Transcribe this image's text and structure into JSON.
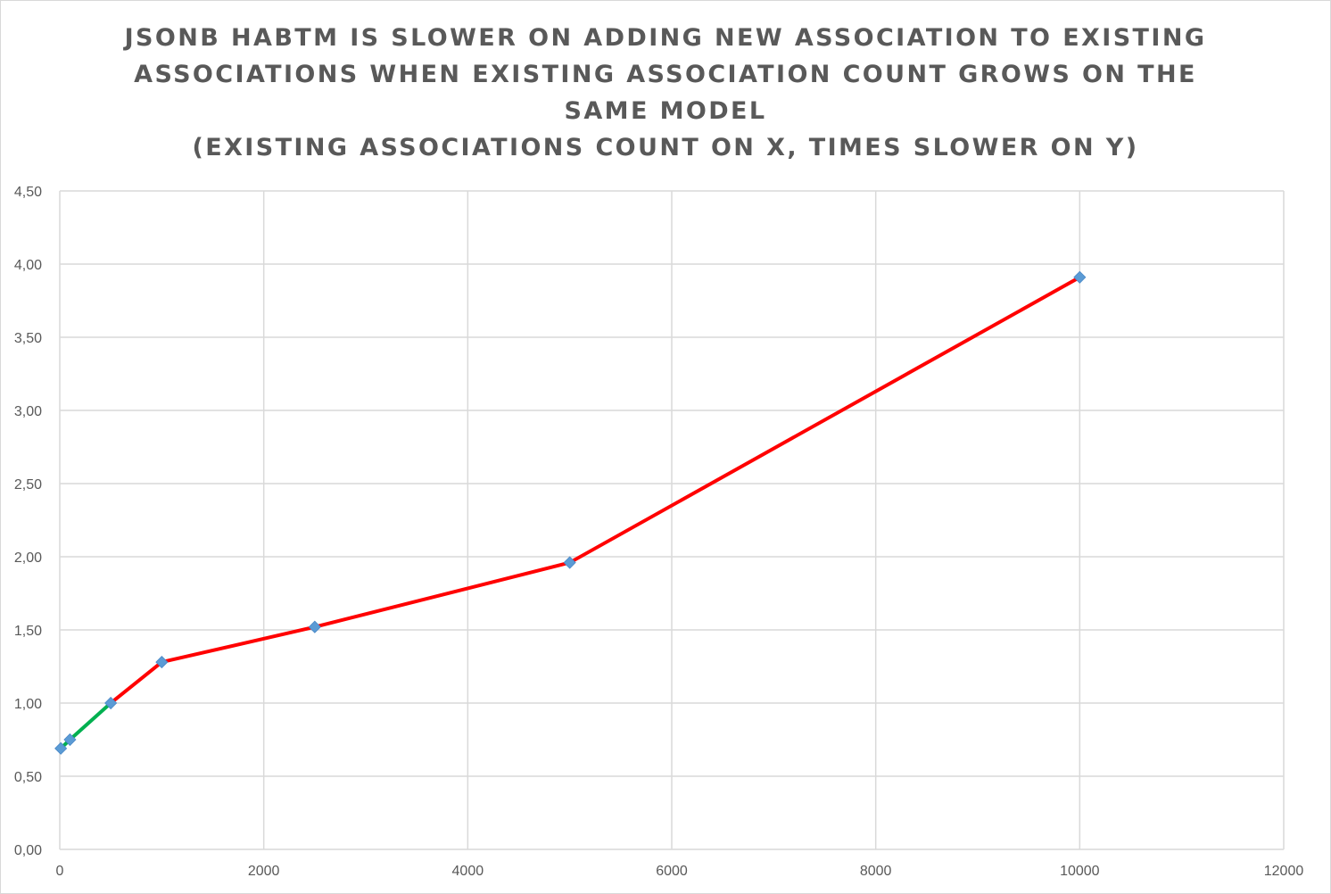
{
  "chart_data": {
    "type": "line",
    "title_lines": [
      "JSONB HABTM IS SLOWER ON ADDING NEW ASSOCIATION TO EXISTING",
      "ASSOCIATIONS WHEN EXISTING ASSOCIATION COUNT GROWS ON THE",
      "SAME MODEL",
      "(EXISTING ASSOCIATIONS COUNT ON X, TIMES SLOWER ON Y)"
    ],
    "xlabel": "",
    "ylabel": "",
    "xlim": [
      0,
      12000
    ],
    "ylim": [
      0,
      4.5
    ],
    "x_ticks": [
      "0",
      "2000",
      "4000",
      "6000",
      "8000",
      "10000",
      "12000"
    ],
    "y_ticks": [
      "0,00",
      "0,50",
      "1,00",
      "1,50",
      "2,00",
      "2,50",
      "3,00",
      "3,50",
      "4,00",
      "4,50"
    ],
    "x_tick_values": [
      0,
      2000,
      4000,
      6000,
      8000,
      10000,
      12000
    ],
    "y_tick_values": [
      0,
      0.5,
      1.0,
      1.5,
      2.0,
      2.5,
      3.0,
      3.5,
      4.0,
      4.5
    ],
    "grid": true,
    "legend": "none",
    "series": [
      {
        "points": [
          {
            "x": 10,
            "y": 0.69
          },
          {
            "x": 100,
            "y": 0.75
          },
          {
            "x": 500,
            "y": 1.0
          },
          {
            "x": 1000,
            "y": 1.28
          },
          {
            "x": 2500,
            "y": 1.52
          },
          {
            "x": 5000,
            "y": 1.96
          },
          {
            "x": 10000,
            "y": 3.91
          }
        ],
        "segment_colors": [
          "#00b050",
          "#00b050",
          "#ff0000",
          "#ff0000",
          "#ff0000",
          "#ff0000"
        ],
        "marker": "diamond",
        "marker_color": "#5b9bd5"
      }
    ]
  }
}
